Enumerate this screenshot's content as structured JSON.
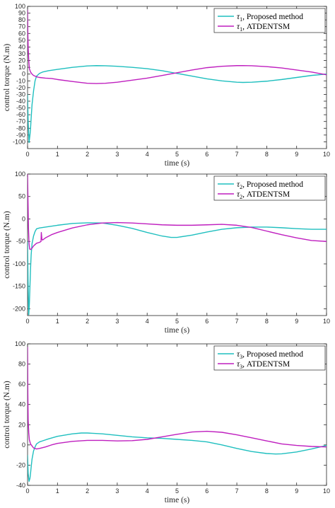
{
  "colors": {
    "proposed": "#1fbfbf",
    "atdentsm": "#bf1fbf",
    "axis": "#262626",
    "background": "#ffffff"
  },
  "chart_data": [
    {
      "type": "line",
      "xlabel": "time (s)",
      "ylabel": "control torque (N.m)",
      "xlim": [
        0,
        10
      ],
      "ylim": [
        -110,
        100
      ],
      "xticks": [
        0,
        1,
        2,
        3,
        4,
        5,
        6,
        7,
        8,
        9,
        10
      ],
      "yticks": [
        -100,
        -90,
        -80,
        -70,
        -60,
        -50,
        -40,
        -30,
        -20,
        -10,
        0,
        10,
        20,
        30,
        40,
        50,
        60,
        70,
        80,
        90,
        100
      ],
      "legend_position": "top-right",
      "series": [
        {
          "name": "τ1, Proposed method",
          "legend_symbol": "τ",
          "legend_sub": "1",
          "legend_rest": ", Proposed method",
          "x": [
            0,
            0.02,
            0.05,
            0.08,
            0.1,
            0.12,
            0.15,
            0.2,
            0.25,
            0.3,
            0.4,
            0.5,
            0.7,
            1.0,
            1.5,
            2.0,
            2.3,
            2.6,
            3.0,
            3.5,
            4.0,
            4.5,
            5.0,
            5.5,
            6.0,
            6.5,
            7.0,
            7.2,
            7.5,
            8.0,
            8.5,
            9.0,
            9.5,
            10.0
          ],
          "y": [
            -30,
            -70,
            -101,
            -90,
            -80,
            -65,
            -45,
            -25,
            -10,
            -3,
            1,
            3,
            5,
            7,
            10,
            12,
            12.5,
            12.3,
            11.5,
            10,
            8,
            5,
            1,
            -3,
            -7,
            -10,
            -12,
            -12.3,
            -12,
            -10.5,
            -8,
            -5,
            -2,
            0
          ]
        },
        {
          "name": "τ1, ATDENTSM",
          "legend_symbol": "τ",
          "legend_sub": "1",
          "legend_rest": ", ATDENTSM",
          "x": [
            0,
            0.01,
            0.02,
            0.04,
            0.06,
            0.1,
            0.15,
            0.2,
            0.3,
            0.4,
            0.6,
            0.8,
            1.0,
            1.5,
            2.0,
            2.3,
            2.6,
            3.0,
            3.5,
            4.0,
            4.5,
            5.0,
            5.5,
            6.0,
            6.5,
            7.0,
            7.2,
            7.5,
            8.0,
            8.5,
            9.0,
            9.5,
            10.0
          ],
          "y": [
            95,
            60,
            40,
            20,
            8,
            3,
            0,
            -2,
            -4,
            -5,
            -6,
            -6.5,
            -8,
            -11,
            -13.5,
            -14,
            -13.5,
            -12,
            -9,
            -6,
            -2,
            2,
            6,
            9.5,
            11.5,
            12.5,
            12.6,
            12.3,
            11,
            9,
            6,
            3,
            -1
          ]
        }
      ]
    },
    {
      "type": "line",
      "xlabel": "time (s)",
      "ylabel": "control torque (N.m)",
      "xlim": [
        0,
        10
      ],
      "ylim": [
        -215,
        100
      ],
      "xticks": [
        0,
        1,
        2,
        3,
        4,
        5,
        6,
        7,
        8,
        9,
        10
      ],
      "yticks": [
        -200,
        -150,
        -100,
        -50,
        0,
        50,
        100
      ],
      "legend_position": "top-right",
      "series": [
        {
          "name": "τ2, Proposed method",
          "legend_symbol": "τ",
          "legend_sub": "2",
          "legend_rest": ", Proposed method",
          "x": [
            0,
            0.02,
            0.04,
            0.06,
            0.08,
            0.1,
            0.12,
            0.15,
            0.2,
            0.25,
            0.3,
            0.4,
            0.5,
            1.0,
            1.5,
            2.0,
            2.5,
            3.0,
            3.5,
            4.0,
            4.5,
            4.8,
            5.0,
            5.5,
            6.0,
            6.5,
            7.0,
            7.5,
            8.0,
            8.5,
            9.0,
            9.5,
            10.0
          ],
          "y": [
            -50,
            -150,
            -213,
            -190,
            -150,
            -110,
            -80,
            -55,
            -38,
            -28,
            -22,
            -20,
            -19,
            -14,
            -10,
            -8.5,
            -9,
            -14,
            -21,
            -30,
            -38,
            -41,
            -41,
            -36,
            -29,
            -23,
            -19.5,
            -18,
            -18,
            -19.5,
            -21.5,
            -23,
            -23
          ]
        },
        {
          "name": "τ2, ATDENTSM",
          "legend_symbol": "τ",
          "legend_sub": "2",
          "legend_rest": ", ATDENTSM",
          "x": [
            0,
            0.01,
            0.02,
            0.03,
            0.05,
            0.07,
            0.1,
            0.15,
            0.2,
            0.25,
            0.3,
            0.4,
            0.45,
            0.46,
            0.48,
            0.5,
            0.6,
            0.8,
            1.0,
            1.5,
            2.0,
            2.5,
            3.0,
            3.5,
            4.0,
            4.5,
            5.0,
            5.5,
            6.0,
            6.5,
            7.0,
            7.5,
            8.0,
            8.5,
            9.0,
            9.5,
            10.0
          ],
          "y": [
            100,
            60,
            20,
            -20,
            -55,
            -67,
            -68,
            -65,
            -60,
            -57,
            -54,
            -52,
            -50,
            -30,
            -45,
            -47,
            -42,
            -35,
            -30,
            -20,
            -13,
            -9,
            -8,
            -9,
            -11,
            -13,
            -14,
            -14,
            -13,
            -12,
            -14,
            -19,
            -27,
            -35,
            -42,
            -48,
            -50
          ]
        }
      ]
    },
    {
      "type": "line",
      "xlabel": "time (s)",
      "ylabel": "control torque (N.m)",
      "xlim": [
        0,
        10
      ],
      "ylim": [
        -40,
        100
      ],
      "xticks": [
        0,
        1,
        2,
        3,
        4,
        5,
        6,
        7,
        8,
        9,
        10
      ],
      "yticks": [
        -40,
        -20,
        0,
        20,
        40,
        60,
        80,
        100
      ],
      "legend_position": "top-right",
      "series": [
        {
          "name": "τ3, Proposed method",
          "legend_symbol": "τ",
          "legend_sub": "3",
          "legend_rest": ", Proposed method",
          "x": [
            0,
            0.02,
            0.05,
            0.08,
            0.1,
            0.12,
            0.15,
            0.2,
            0.25,
            0.3,
            0.4,
            0.5,
            0.7,
            1.0,
            1.5,
            1.8,
            2.0,
            2.5,
            3.0,
            3.5,
            4.0,
            4.5,
            5.0,
            5.5,
            6.0,
            6.5,
            7.0,
            7.5,
            8.0,
            8.3,
            8.5,
            9.0,
            9.5,
            10.0
          ],
          "y": [
            -10,
            -28,
            -36,
            -33,
            -28,
            -22,
            -14,
            -6,
            -2,
            1,
            3,
            4,
            6,
            8.5,
            11,
            11.8,
            11.8,
            11,
            9.5,
            8,
            7,
            6.5,
            5.5,
            4.5,
            3,
            0,
            -3.5,
            -6.5,
            -8.5,
            -9,
            -8.8,
            -7,
            -4,
            -0.5
          ]
        },
        {
          "name": "τ3, ATDENTSM",
          "legend_symbol": "τ",
          "legend_sub": "3",
          "legend_rest": ", ATDENTSM",
          "x": [
            0,
            0.01,
            0.02,
            0.04,
            0.06,
            0.1,
            0.15,
            0.2,
            0.3,
            0.4,
            0.6,
            0.8,
            1.0,
            1.5,
            2.0,
            2.5,
            3.0,
            3.5,
            4.0,
            4.5,
            5.0,
            5.5,
            6.0,
            6.5,
            7.0,
            7.5,
            8.0,
            8.5,
            9.0,
            9.5,
            10.0
          ],
          "y": [
            97,
            50,
            25,
            12,
            5,
            1,
            -1,
            -3,
            -4,
            -3.5,
            -2,
            0,
            1.5,
            3.5,
            4.5,
            4.5,
            4,
            4.2,
            5.5,
            8,
            10.5,
            12.8,
            13.5,
            12.5,
            10,
            7,
            4,
            1,
            -0.5,
            -1.5,
            -2
          ]
        }
      ]
    }
  ]
}
